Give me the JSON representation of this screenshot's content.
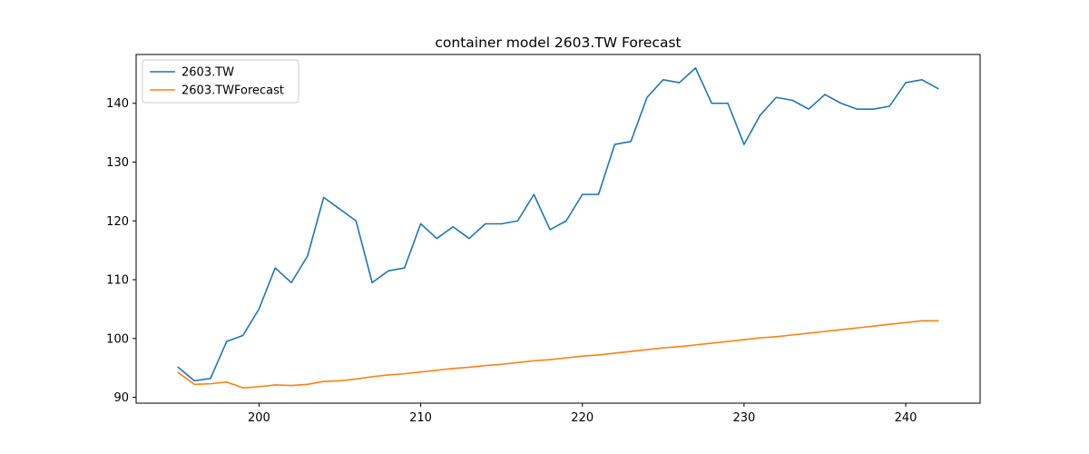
{
  "chart_data": {
    "type": "line",
    "title": "container model 2603.TW Forecast",
    "xlabel": "",
    "ylabel": "",
    "xlim": [
      192.4,
      244.6
    ],
    "ylim": [
      89.0,
      148.3
    ],
    "xticks": [
      200,
      210,
      220,
      230,
      240
    ],
    "yticks": [
      90,
      100,
      110,
      120,
      130,
      140
    ],
    "grid": false,
    "legend_position": "top-left",
    "series": [
      {
        "name": "2603.TW",
        "color": "#1f77b4",
        "x": [
          195,
          196,
          197,
          198,
          199,
          200,
          201,
          202,
          203,
          204,
          205,
          206,
          207,
          208,
          209,
          210,
          211,
          212,
          213,
          214,
          215,
          216,
          217,
          218,
          219,
          220,
          221,
          222,
          223,
          224,
          225,
          226,
          227,
          228,
          229,
          230,
          231,
          232,
          233,
          234,
          235,
          236,
          237,
          238,
          239,
          240,
          241,
          242
        ],
        "y": [
          95.1,
          92.8,
          93.2,
          99.5,
          100.5,
          105.0,
          112.0,
          109.5,
          114.0,
          124.0,
          122.0,
          120.0,
          109.5,
          111.5,
          112.0,
          119.5,
          117.0,
          119.0,
          117.0,
          119.5,
          119.5,
          120.0,
          124.5,
          118.5,
          120.0,
          124.5,
          124.5,
          133.0,
          133.5,
          141.0,
          144.0,
          143.5,
          146.0,
          140.0,
          140.0,
          133.0,
          138.0,
          141.0,
          140.5,
          139.0,
          141.5,
          140.0,
          139.0,
          139.0,
          139.5,
          143.5,
          144.0,
          142.5
        ]
      },
      {
        "name": "2603.TWForecast",
        "color": "#ff7f0e",
        "x": [
          195,
          196,
          197,
          198,
          199,
          200,
          201,
          202,
          203,
          204,
          205,
          206,
          207,
          208,
          209,
          210,
          211,
          212,
          213,
          214,
          215,
          216,
          217,
          218,
          219,
          220,
          221,
          222,
          223,
          224,
          225,
          226,
          227,
          228,
          229,
          230,
          231,
          232,
          233,
          234,
          235,
          236,
          237,
          238,
          239,
          240,
          241,
          242
        ],
        "y": [
          94.2,
          92.2,
          92.3,
          92.6,
          91.6,
          91.8,
          92.1,
          92.0,
          92.2,
          92.7,
          92.8,
          93.1,
          93.5,
          93.8,
          94.0,
          94.3,
          94.6,
          94.9,
          95.1,
          95.4,
          95.6,
          95.9,
          96.2,
          96.4,
          96.7,
          97.0,
          97.2,
          97.5,
          97.8,
          98.1,
          98.4,
          98.6,
          98.9,
          99.2,
          99.5,
          99.8,
          100.1,
          100.3,
          100.6,
          100.9,
          101.2,
          101.5,
          101.8,
          102.1,
          102.4,
          102.7,
          103.0,
          103.0
        ]
      }
    ]
  }
}
